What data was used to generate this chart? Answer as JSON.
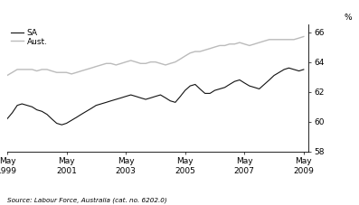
{
  "title": "",
  "ylabel": "%",
  "source_text": "Source: Labour Force, Australia (cat. no. 6202.0)",
  "ylim": [
    58,
    66.5
  ],
  "yticks": [
    58,
    60,
    62,
    64,
    66
  ],
  "x_tick_positions": [
    1999.33,
    2001.33,
    2003.33,
    2005.33,
    2007.33,
    2009.33
  ],
  "x_tick_labels": [
    "May\n1999",
    "May\n2001",
    "May\n2003",
    "May\n2005",
    "May\n2007",
    "May\n2009"
  ],
  "xlim": [
    1999.33,
    2009.5
  ],
  "legend_entries": [
    "SA",
    "Aust."
  ],
  "sa_color": "#111111",
  "aust_color": "#bbbbbb",
  "sa_data_x": [
    1999.33,
    1999.5,
    1999.67,
    1999.83,
    2000.0,
    2000.17,
    2000.33,
    2000.5,
    2000.67,
    2000.83,
    2001.0,
    2001.17,
    2001.33,
    2001.5,
    2001.67,
    2001.83,
    2002.0,
    2002.17,
    2002.33,
    2002.5,
    2002.67,
    2002.83,
    2003.0,
    2003.17,
    2003.33,
    2003.5,
    2003.67,
    2003.83,
    2004.0,
    2004.17,
    2004.33,
    2004.5,
    2004.67,
    2004.83,
    2005.0,
    2005.17,
    2005.33,
    2005.5,
    2005.67,
    2005.83,
    2006.0,
    2006.17,
    2006.33,
    2006.5,
    2006.67,
    2006.83,
    2007.0,
    2007.17,
    2007.33,
    2007.5,
    2007.67,
    2007.83,
    2008.0,
    2008.17,
    2008.33,
    2008.5,
    2008.67,
    2008.83,
    2009.0,
    2009.17,
    2009.33
  ],
  "sa_data_y": [
    60.2,
    60.6,
    61.1,
    61.2,
    61.1,
    61.0,
    60.8,
    60.7,
    60.5,
    60.2,
    59.9,
    59.8,
    59.9,
    60.1,
    60.3,
    60.5,
    60.7,
    60.9,
    61.1,
    61.2,
    61.3,
    61.4,
    61.5,
    61.6,
    61.7,
    61.8,
    61.7,
    61.6,
    61.5,
    61.6,
    61.7,
    61.8,
    61.6,
    61.4,
    61.3,
    61.7,
    62.1,
    62.4,
    62.5,
    62.2,
    61.9,
    61.9,
    62.1,
    62.2,
    62.3,
    62.5,
    62.7,
    62.8,
    62.6,
    62.4,
    62.3,
    62.2,
    62.5,
    62.8,
    63.1,
    63.3,
    63.5,
    63.6,
    63.5,
    63.4,
    63.5
  ],
  "aust_data_x": [
    1999.33,
    1999.5,
    1999.67,
    1999.83,
    2000.0,
    2000.17,
    2000.33,
    2000.5,
    2000.67,
    2000.83,
    2001.0,
    2001.17,
    2001.33,
    2001.5,
    2001.67,
    2001.83,
    2002.0,
    2002.17,
    2002.33,
    2002.5,
    2002.67,
    2002.83,
    2003.0,
    2003.17,
    2003.33,
    2003.5,
    2003.67,
    2003.83,
    2004.0,
    2004.17,
    2004.33,
    2004.5,
    2004.67,
    2004.83,
    2005.0,
    2005.17,
    2005.33,
    2005.5,
    2005.67,
    2005.83,
    2006.0,
    2006.17,
    2006.33,
    2006.5,
    2006.67,
    2006.83,
    2007.0,
    2007.17,
    2007.33,
    2007.5,
    2007.67,
    2007.83,
    2008.0,
    2008.17,
    2008.33,
    2008.5,
    2008.67,
    2008.83,
    2009.0,
    2009.17,
    2009.33
  ],
  "aust_data_y": [
    63.1,
    63.3,
    63.5,
    63.5,
    63.5,
    63.5,
    63.4,
    63.5,
    63.5,
    63.4,
    63.3,
    63.3,
    63.3,
    63.2,
    63.3,
    63.4,
    63.5,
    63.6,
    63.7,
    63.8,
    63.9,
    63.9,
    63.8,
    63.9,
    64.0,
    64.1,
    64.0,
    63.9,
    63.9,
    64.0,
    64.0,
    63.9,
    63.8,
    63.9,
    64.0,
    64.2,
    64.4,
    64.6,
    64.7,
    64.7,
    64.8,
    64.9,
    65.0,
    65.1,
    65.1,
    65.2,
    65.2,
    65.3,
    65.2,
    65.1,
    65.2,
    65.3,
    65.4,
    65.5,
    65.5,
    65.5,
    65.5,
    65.5,
    65.5,
    65.6,
    65.7
  ]
}
